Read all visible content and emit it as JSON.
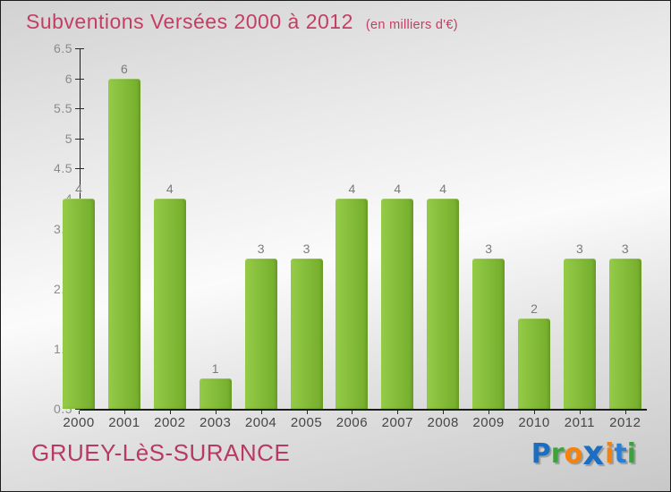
{
  "header": {
    "title": "Subventions Versées 2000 à 2012",
    "subtitle": "(en milliers d'€)",
    "title_color": "#c43e63"
  },
  "footer": {
    "commune": "GRUEY-LèS-SURANCE",
    "commune_color": "#b83a62"
  },
  "logo": {
    "name": "Proxiti",
    "letters": [
      {
        "ch": "P",
        "color": "#1b6ec2",
        "big": false
      },
      {
        "ch": "r",
        "color": "#3da23d",
        "big": false
      },
      {
        "ch": "o",
        "color": "#f5820b",
        "big": false
      },
      {
        "ch": "x",
        "color": "#1b6ec2",
        "big": true
      },
      {
        "ch": "i",
        "color": "#f5820b",
        "big": false
      },
      {
        "ch": "t",
        "color": "#2a7fd4",
        "big": false
      },
      {
        "ch": "i",
        "color": "#3da23d",
        "big": false
      }
    ]
  },
  "chart_data": {
    "type": "bar",
    "title": "Subventions Versées 2000 à 2012",
    "subtitle": "(en milliers d'€)",
    "categories": [
      "2000",
      "2001",
      "2002",
      "2003",
      "2004",
      "2005",
      "2006",
      "2007",
      "2008",
      "2009",
      "2010",
      "2011",
      "2012"
    ],
    "values": [
      4,
      6,
      4,
      1,
      3,
      3,
      4,
      4,
      4,
      3,
      2,
      3,
      3
    ],
    "xlabel": "",
    "ylabel": "",
    "ylim": [
      0.5,
      6.5
    ],
    "ytick_step": 0.5,
    "grid": false,
    "legend": false,
    "bar_color_light": "#94cc48",
    "bar_color_dark": "#74ad2b",
    "value_label_color": "#7b7b7b",
    "axis_color": "#1d1d1d"
  }
}
